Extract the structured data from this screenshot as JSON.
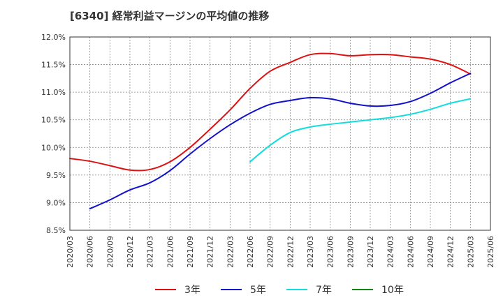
{
  "chart_data": {
    "type": "line",
    "title": "[6340]  経常利益マージンの平均値の推移",
    "xlabel": "",
    "ylabel": "",
    "x_ticks": [
      "2020/03",
      "2020/06",
      "2020/09",
      "2020/12",
      "2021/03",
      "2021/06",
      "2021/09",
      "2021/12",
      "2022/03",
      "2022/06",
      "2022/09",
      "2022/12",
      "2023/03",
      "2023/06",
      "2023/09",
      "2023/12",
      "2024/03",
      "2024/06",
      "2024/09",
      "2024/12",
      "2025/03",
      "2025/06"
    ],
    "y_ticks": [
      "8.5%",
      "9.0%",
      "9.5%",
      "10.0%",
      "10.5%",
      "11.0%",
      "11.5%",
      "12.0%"
    ],
    "ylim": [
      8.5,
      12.0
    ],
    "grid": true,
    "legend_position": "bottom",
    "series": [
      {
        "name": "3年",
        "color": "#dd1111",
        "points": [
          [
            "2020/03",
            9.8
          ],
          [
            "2020/06",
            9.75
          ],
          [
            "2020/09",
            9.67
          ],
          [
            "2020/12",
            9.59
          ],
          [
            "2021/03",
            9.6
          ],
          [
            "2021/06",
            9.74
          ],
          [
            "2021/09",
            10.0
          ],
          [
            "2021/12",
            10.33
          ],
          [
            "2022/03",
            10.68
          ],
          [
            "2022/06",
            11.07
          ],
          [
            "2022/09",
            11.38
          ],
          [
            "2022/12",
            11.54
          ],
          [
            "2023/03",
            11.68
          ],
          [
            "2023/06",
            11.7
          ],
          [
            "2023/09",
            11.66
          ],
          [
            "2023/12",
            11.68
          ],
          [
            "2024/03",
            11.68
          ],
          [
            "2024/06",
            11.64
          ],
          [
            "2024/09",
            11.6
          ],
          [
            "2024/12",
            11.5
          ],
          [
            "2025/03",
            11.33
          ]
        ]
      },
      {
        "name": "5年",
        "color": "#1111cc",
        "points": [
          [
            "2020/06",
            8.89
          ],
          [
            "2020/09",
            9.05
          ],
          [
            "2020/12",
            9.23
          ],
          [
            "2021/03",
            9.36
          ],
          [
            "2021/06",
            9.58
          ],
          [
            "2021/09",
            9.88
          ],
          [
            "2021/12",
            10.16
          ],
          [
            "2022/03",
            10.41
          ],
          [
            "2022/06",
            10.62
          ],
          [
            "2022/09",
            10.78
          ],
          [
            "2022/12",
            10.85
          ],
          [
            "2023/03",
            10.9
          ],
          [
            "2023/06",
            10.88
          ],
          [
            "2023/09",
            10.8
          ],
          [
            "2023/12",
            10.75
          ],
          [
            "2024/03",
            10.76
          ],
          [
            "2024/06",
            10.83
          ],
          [
            "2024/09",
            10.98
          ],
          [
            "2024/12",
            11.17
          ],
          [
            "2025/03",
            11.34
          ]
        ]
      },
      {
        "name": "7年",
        "color": "#11dddd",
        "points": [
          [
            "2022/06",
            9.74
          ],
          [
            "2022/09",
            10.04
          ],
          [
            "2022/12",
            10.27
          ],
          [
            "2023/03",
            10.37
          ],
          [
            "2023/06",
            10.42
          ],
          [
            "2023/09",
            10.46
          ],
          [
            "2023/12",
            10.5
          ],
          [
            "2024/03",
            10.54
          ],
          [
            "2024/06",
            10.6
          ],
          [
            "2024/09",
            10.69
          ],
          [
            "2024/12",
            10.8
          ],
          [
            "2025/03",
            10.88
          ]
        ]
      },
      {
        "name": "10年",
        "color": "#118811",
        "points": []
      }
    ]
  }
}
